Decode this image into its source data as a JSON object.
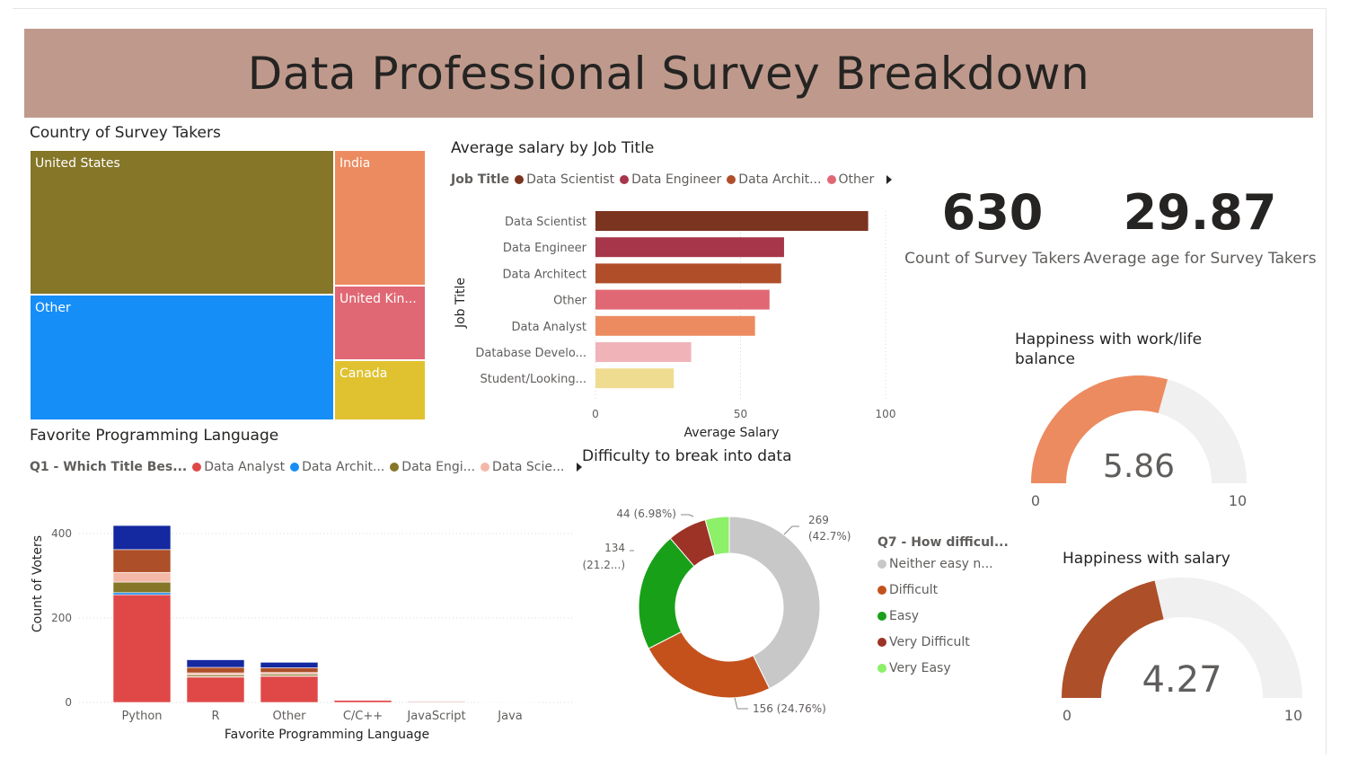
{
  "title": "Data Professional Survey Breakdown",
  "treemap": {
    "title": "Country of Survey Takers",
    "cells": [
      {
        "label": "United States",
        "color": "#857628"
      },
      {
        "label": "Other",
        "color": "#168ef7"
      },
      {
        "label": "India",
        "color": "#ec8b60"
      },
      {
        "label": "United Kin...",
        "color": "#e06874"
      },
      {
        "label": "Canada",
        "color": "#e0c230"
      }
    ]
  },
  "salary": {
    "title": "Average salary by Job Title",
    "legend_title": "Job Title",
    "legend": [
      {
        "label": "Data Scientist",
        "color": "#7b341f"
      },
      {
        "label": "Data Engineer",
        "color": "#a7364a"
      },
      {
        "label": "Data Archit...",
        "color": "#b04e2a"
      },
      {
        "label": "Other",
        "color": "#e06874"
      }
    ]
  },
  "kpis": [
    {
      "value": "630",
      "label": "Count of Survey Takers"
    },
    {
      "value": "29.87",
      "label": "Average age for Survey Takers"
    }
  ],
  "language": {
    "title": "Favorite Programming Language",
    "legend_title": "Q1 - Which Title Bes...",
    "legend": [
      {
        "label": "Data Analyst",
        "color": "#e04848"
      },
      {
        "label": "Data Archit...",
        "color": "#168ef7"
      },
      {
        "label": "Data Engi...",
        "color": "#857628"
      },
      {
        "label": "Data Scie...",
        "color": "#f4b8a8"
      }
    ]
  },
  "difficulty": {
    "title": "Difficulty to break into data",
    "legend_title": "Q7 - How difficul...",
    "legend": [
      {
        "label": "Neither easy n...",
        "color": "#c8c8c8"
      },
      {
        "label": "Difficult",
        "color": "#c4511c"
      },
      {
        "label": "Easy",
        "color": "#18a018"
      },
      {
        "label": "Very Difficult",
        "color": "#9c3326"
      },
      {
        "label": "Very Easy",
        "color": "#8cf068"
      }
    ],
    "labels": [
      {
        "line1": "269",
        "line2": "(42.7%)"
      },
      {
        "line1": "156 (24.76%)",
        "line2": ""
      },
      {
        "line1": "134",
        "line2": "(21.2...)"
      },
      {
        "line1": "44 (6.98%)",
        "line2": ""
      }
    ]
  },
  "gauges": [
    {
      "title_line1": "Happiness with work/life",
      "title_line2": "balance",
      "value": 5.86,
      "value_label": "5.86",
      "min_label": "0",
      "max_label": "10",
      "max": 10,
      "color": "#ec8b60"
    },
    {
      "title_line1": "Happiness with salary",
      "title_line2": "",
      "value": 4.27,
      "value_label": "4.27",
      "min_label": "0",
      "max_label": "10",
      "max": 10,
      "color": "#ad4f28"
    }
  ],
  "chart_data": [
    {
      "type": "treemap",
      "title": "Country of Survey Takers",
      "categories": [
        "United States",
        "Other",
        "India",
        "United Kin...",
        "Canada"
      ],
      "values": [
        262,
        220,
        54,
        36,
        30
      ]
    },
    {
      "type": "bar",
      "orientation": "horizontal",
      "title": "Average salary by Job Title",
      "categories": [
        "Data Scientist",
        "Data Engineer",
        "Data Architect",
        "Other",
        "Data Analyst",
        "Database Develo...",
        "Student/Looking..."
      ],
      "values": [
        94,
        65,
        64,
        60,
        55,
        33,
        27
      ],
      "colors": [
        "#7b341f",
        "#a7364a",
        "#b04e2a",
        "#e06874",
        "#ec8b60",
        "#f0b4b8",
        "#f0dc90"
      ],
      "xlabel": "Average Salary",
      "ylabel": "Job Title",
      "xlim": [
        0,
        100
      ],
      "xticks": [
        0,
        50,
        100
      ]
    },
    {
      "type": "bar",
      "stacked": true,
      "title": "Favorite Programming Language",
      "categories": [
        "Python",
        "R",
        "Other",
        "C/C++",
        "JavaScript",
        "Java"
      ],
      "xlabel": "Favorite Programming Language",
      "ylabel": "Count of Voters",
      "ylim": [
        0,
        430
      ],
      "yticks": [
        0,
        200,
        400
      ],
      "series": [
        {
          "name": "Data Analyst",
          "color": "#e04848",
          "values": [
            255,
            60,
            62,
            5,
            2,
            1
          ]
        },
        {
          "name": "Data Archit...",
          "color": "#168ef7",
          "values": [
            5,
            1,
            1,
            0,
            1,
            0
          ]
        },
        {
          "name": "Data Engi...",
          "color": "#857628",
          "values": [
            25,
            4,
            4,
            1,
            0,
            0
          ]
        },
        {
          "name": "Data Scie...",
          "color": "#f4b8a8",
          "values": [
            23,
            5,
            4,
            1,
            1,
            1
          ]
        },
        {
          "color": "#ad4f28",
          "values": [
            54,
            13,
            11,
            1,
            1,
            1
          ]
        },
        {
          "color": "#1428a0",
          "values": [
            57,
            18,
            13,
            1,
            1,
            0
          ]
        }
      ]
    },
    {
      "type": "pie",
      "donut": true,
      "title": "Difficulty to break into data",
      "categories": [
        "Neither easy n...",
        "Difficult",
        "Easy",
        "Very Difficult",
        "Very Easy"
      ],
      "values": [
        269,
        156,
        134,
        44,
        27
      ],
      "colors": [
        "#c8c8c8",
        "#c4511c",
        "#18a018",
        "#9c3326",
        "#8cf068"
      ]
    }
  ]
}
